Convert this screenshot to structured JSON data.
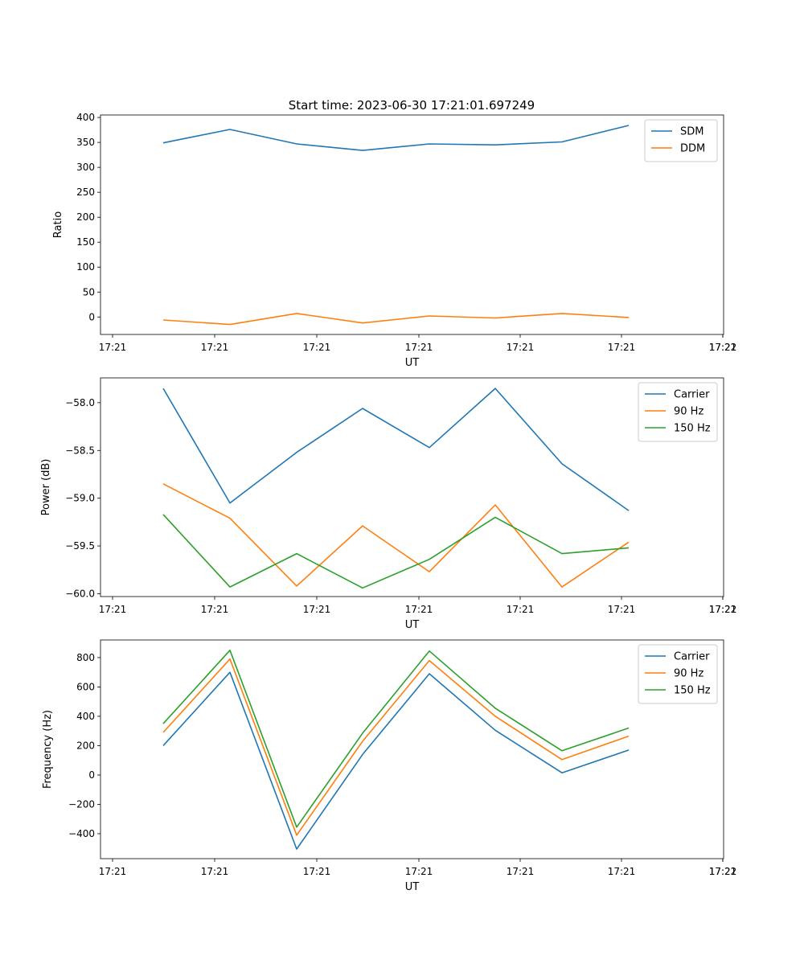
{
  "figure": {
    "title": "Start time: 2023-06-30 17:21:01.697249"
  },
  "chart_data": [
    {
      "type": "line",
      "xlabel": "UT",
      "ylabel": "Ratio",
      "x_tick_labels": [
        "17:21",
        "17:21",
        "17:21",
        "17:21",
        "17:21",
        "17:21",
        "17:21",
        "17:22"
      ],
      "yticks": [
        0,
        50,
        100,
        150,
        200,
        250,
        300,
        350,
        400
      ],
      "ytick_labels": [
        "0",
        "50",
        "100",
        "150",
        "200",
        "250",
        "300",
        "350",
        "400"
      ],
      "ylim": [
        -35,
        405
      ],
      "legend_position": "top-right",
      "series": [
        {
          "name": "SDM",
          "color": "#1f77b4",
          "values": [
            349,
            376,
            347,
            334,
            347,
            345,
            351,
            384
          ]
        },
        {
          "name": "DDM",
          "color": "#ff7f0e",
          "values": [
            -6,
            -15,
            7,
            -12,
            2,
            -2,
            7,
            -1
          ]
        }
      ]
    },
    {
      "type": "line",
      "xlabel": "UT",
      "ylabel": "Power (dB)",
      "x_tick_labels": [
        "17:21",
        "17:21",
        "17:21",
        "17:21",
        "17:21",
        "17:21",
        "17:21",
        "17:22"
      ],
      "yticks": [
        -60.0,
        -59.5,
        -59.0,
        -58.5,
        -58.0
      ],
      "ytick_labels": [
        "−60.0",
        "−59.5",
        "−59.0",
        "−58.5",
        "−58.0"
      ],
      "ylim": [
        -60.03,
        -57.74
      ],
      "legend_position": "top-right",
      "series": [
        {
          "name": "Carrier",
          "color": "#1f77b4",
          "values": [
            -57.85,
            -59.05,
            -58.52,
            -58.06,
            -58.47,
            -57.85,
            -58.64,
            -59.13
          ]
        },
        {
          "name": "90 Hz",
          "color": "#ff7f0e",
          "values": [
            -58.85,
            -59.21,
            -59.92,
            -59.29,
            -59.77,
            -59.07,
            -59.93,
            -59.46
          ]
        },
        {
          "name": "150 Hz",
          "color": "#2ca02c",
          "values": [
            -59.17,
            -59.93,
            -59.58,
            -59.94,
            -59.64,
            -59.2,
            -59.58,
            -59.52
          ]
        }
      ]
    },
    {
      "type": "line",
      "xlabel": "UT",
      "ylabel": "Frequency (Hz)",
      "x_tick_labels": [
        "17:21",
        "17:21",
        "17:21",
        "17:21",
        "17:21",
        "17:21",
        "17:21",
        "17:22"
      ],
      "yticks": [
        -400,
        -200,
        0,
        200,
        400,
        600,
        800
      ],
      "ytick_labels": [
        "−400",
        "−200",
        "0",
        "200",
        "400",
        "600",
        "800"
      ],
      "ylim": [
        -570,
        920
      ],
      "legend_position": "top-right",
      "series": [
        {
          "name": "Carrier",
          "color": "#1f77b4",
          "values": [
            200,
            700,
            -505,
            140,
            690,
            305,
            15,
            170
          ]
        },
        {
          "name": "90 Hz",
          "color": "#ff7f0e",
          "values": [
            290,
            790,
            -410,
            230,
            780,
            400,
            105,
            265
          ]
        },
        {
          "name": "150 Hz",
          "color": "#2ca02c",
          "values": [
            350,
            850,
            -355,
            285,
            845,
            455,
            165,
            320
          ]
        }
      ]
    }
  ]
}
